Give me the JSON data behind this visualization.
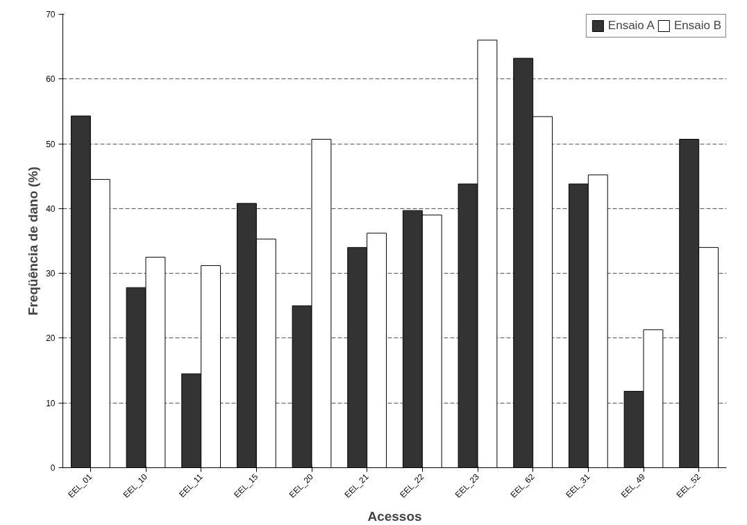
{
  "chart_data": {
    "type": "bar",
    "xlabel": "Acessos",
    "ylabel": "Freqüência de dano (%)",
    "categories": [
      "EEL_01",
      "EEL_10",
      "EEL_11",
      "EEL_15",
      "EEL_20",
      "EEL_21",
      "EEL_22",
      "EEL_23",
      "EEL_62",
      "EEL_31",
      "EEL_49",
      "EEL_52"
    ],
    "series": [
      {
        "name": "Ensaio A",
        "color": "#333333",
        "values": [
          54.3,
          27.8,
          14.5,
          40.8,
          25.0,
          34.0,
          39.7,
          43.8,
          63.2,
          43.8,
          11.8,
          50.7
        ]
      },
      {
        "name": "Ensaio B",
        "color": "#ffffff",
        "values": [
          44.5,
          32.5,
          31.2,
          35.3,
          50.7,
          36.2,
          39.0,
          66.0,
          54.2,
          45.2,
          21.3,
          34.0
        ]
      }
    ],
    "ylim": [
      0,
      70
    ],
    "yticks": [
      0,
      10,
      20,
      30,
      40,
      50,
      60,
      70
    ],
    "grid": "y",
    "legend": "top right"
  }
}
